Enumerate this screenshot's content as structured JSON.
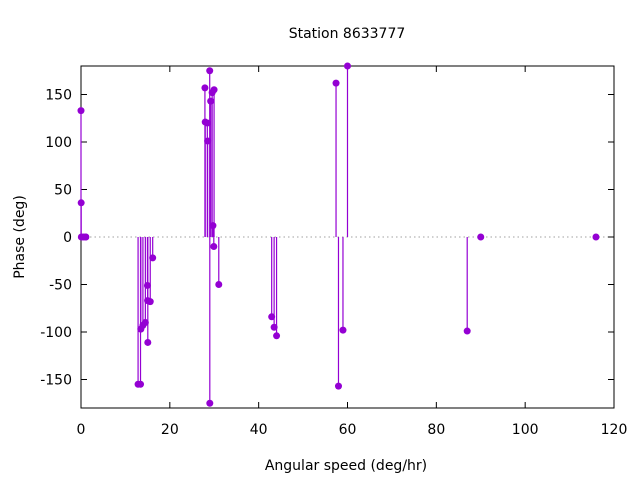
{
  "chart_data": {
    "type": "impulse",
    "title": "Station 8633777",
    "xlabel": "Angular speed (deg/hr)",
    "ylabel": "Phase (deg)",
    "xlim": [
      0,
      120
    ],
    "ylim": [
      -180,
      180
    ],
    "xticks": [
      0,
      20,
      40,
      60,
      80,
      100,
      120
    ],
    "yticks": [
      -150,
      -100,
      -50,
      0,
      50,
      100,
      150
    ],
    "zero_line": "dotted",
    "color": "#9400d3",
    "points": [
      {
        "x": 0.0,
        "y": 133
      },
      {
        "x": 0.04,
        "y": 36
      },
      {
        "x": 0.08,
        "y": 0
      },
      {
        "x": 0.54,
        "y": 0
      },
      {
        "x": 1.02,
        "y": 0
      },
      {
        "x": 1.1,
        "y": 0
      },
      {
        "x": 12.85,
        "y": -155
      },
      {
        "x": 13.4,
        "y": -155
      },
      {
        "x": 13.47,
        "y": -97
      },
      {
        "x": 13.94,
        "y": -93
      },
      {
        "x": 14.49,
        "y": -90
      },
      {
        "x": 14.96,
        "y": -51
      },
      {
        "x": 15.0,
        "y": -67
      },
      {
        "x": 15.04,
        "y": -111
      },
      {
        "x": 15.59,
        "y": -68
      },
      {
        "x": 16.14,
        "y": -22
      },
      {
        "x": 27.9,
        "y": 157
      },
      {
        "x": 27.97,
        "y": 121
      },
      {
        "x": 28.44,
        "y": 120
      },
      {
        "x": 28.51,
        "y": 101
      },
      {
        "x": 28.98,
        "y": 175
      },
      {
        "x": 29.0,
        "y": -175
      },
      {
        "x": 29.2,
        "y": 143
      },
      {
        "x": 29.53,
        "y": 152
      },
      {
        "x": 29.96,
        "y": 155
      },
      {
        "x": 29.7,
        "y": 12
      },
      {
        "x": 29.9,
        "y": -10
      },
      {
        "x": 31.02,
        "y": -50
      },
      {
        "x": 42.93,
        "y": -84
      },
      {
        "x": 43.48,
        "y": -95
      },
      {
        "x": 44.03,
        "y": -104
      },
      {
        "x": 57.42,
        "y": 162
      },
      {
        "x": 57.97,
        "y": -157
      },
      {
        "x": 58.98,
        "y": -98
      },
      {
        "x": 60.0,
        "y": 180
      },
      {
        "x": 86.95,
        "y": -99
      },
      {
        "x": 90.0,
        "y": 0
      },
      {
        "x": 115.94,
        "y": 0
      }
    ]
  }
}
